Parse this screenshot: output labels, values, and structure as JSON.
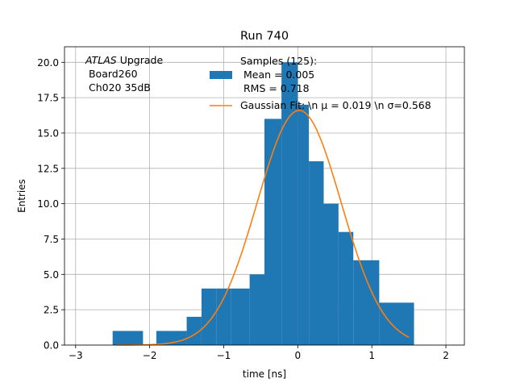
{
  "chart_data": {
    "type": "bar",
    "title": "Run 740",
    "xlabel": "time [ns]",
    "ylabel": "Entries",
    "xlim": [
      -3.15,
      2.25
    ],
    "ylim": [
      0,
      21.1
    ],
    "grid": true,
    "x_ticks": [
      "−3",
      "−2",
      "−1",
      "0",
      "1",
      "2"
    ],
    "y_ticks": [
      "0.0",
      "2.5",
      "5.0",
      "7.5",
      "10.0",
      "12.5",
      "15.0",
      "17.5",
      "20.0"
    ],
    "bin_edges": [
      -2.5,
      -2.09,
      -1.91,
      -1.5,
      -1.3,
      -1.1,
      -0.9,
      -0.65,
      -0.45,
      -0.22,
      0.0,
      0.15,
      0.35,
      0.55,
      0.75,
      1.1,
      1.57
    ],
    "counts": [
      1,
      0,
      1,
      2,
      4,
      4,
      4,
      5,
      16,
      20,
      17,
      13,
      10,
      8,
      6,
      3
    ],
    "bar_color": "#1f77b4",
    "fit": {
      "label": "Gaussian Fit: \\n $\\mu$ = 0.019 \\n $\\sigma$=0.568",
      "label_display": "Gaussian Fit: \\n μ = 0.019 \\n σ=0.568",
      "amplitude": 16.6,
      "mu": 0.019,
      "sigma": 0.568,
      "x_range": [
        -2.45,
        1.5
      ],
      "color": "#ff7f0e"
    },
    "legend": {
      "placement": "top-center",
      "hist_lines": [
        "Samples (125):",
        " Mean = 0.005",
        " RMS = 0.718"
      ]
    },
    "annotation": {
      "italic": "ATLAS",
      "rest": " Upgrade",
      "lines": [
        " Board260",
        " Ch020 35dB"
      ],
      "placement": "top-left"
    }
  }
}
